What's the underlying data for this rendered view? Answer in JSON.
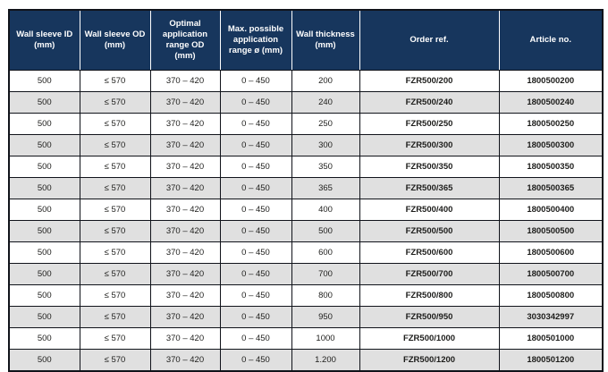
{
  "colors": {
    "header_bg": "#17365d",
    "header_text": "#ffffff",
    "row_alt_bg": "#e0e0e0",
    "row_bg": "#ffffff",
    "border": "#10131a",
    "body_text": "#1d1d1b"
  },
  "table": {
    "columns": [
      "Wall sleeve ID\n(mm)",
      "Wall sleeve OD\n(mm)",
      "Optimal\napplication\nrange OD\n(mm)",
      "Max. possible\napplication\nrange ø (mm)",
      "Wall thickness\n(mm)",
      "Order ref.",
      "Article no."
    ],
    "rows": [
      [
        "500",
        "≤ 570",
        "370 – 420",
        "0 – 450",
        "200",
        "FZR500/200",
        "1800500200"
      ],
      [
        "500",
        "≤ 570",
        "370 – 420",
        "0 – 450",
        "240",
        "FZR500/240",
        "1800500240"
      ],
      [
        "500",
        "≤ 570",
        "370 – 420",
        "0 – 450",
        "250",
        "FZR500/250",
        "1800500250"
      ],
      [
        "500",
        "≤ 570",
        "370 – 420",
        "0 – 450",
        "300",
        "FZR500/300",
        "1800500300"
      ],
      [
        "500",
        "≤ 570",
        "370 – 420",
        "0 – 450",
        "350",
        "FZR500/350",
        "1800500350"
      ],
      [
        "500",
        "≤ 570",
        "370 – 420",
        "0 – 450",
        "365",
        "FZR500/365",
        "1800500365"
      ],
      [
        "500",
        "≤ 570",
        "370 – 420",
        "0 – 450",
        "400",
        "FZR500/400",
        "1800500400"
      ],
      [
        "500",
        "≤ 570",
        "370 – 420",
        "0 – 450",
        "500",
        "FZR500/500",
        "1800500500"
      ],
      [
        "500",
        "≤ 570",
        "370 – 420",
        "0 – 450",
        "600",
        "FZR500/600",
        "1800500600"
      ],
      [
        "500",
        "≤ 570",
        "370 – 420",
        "0 – 450",
        "700",
        "FZR500/700",
        "1800500700"
      ],
      [
        "500",
        "≤ 570",
        "370 – 420",
        "0 – 450",
        "800",
        "FZR500/800",
        "1800500800"
      ],
      [
        "500",
        "≤ 570",
        "370 – 420",
        "0 – 450",
        "950",
        "FZR500/950",
        "3030342997"
      ],
      [
        "500",
        "≤ 570",
        "370 – 420",
        "0 – 450",
        "1000",
        "FZR500/1000",
        "1800501000"
      ],
      [
        "500",
        "≤ 570",
        "370 – 420",
        "0 – 450",
        "1.200",
        "FZR500/1200",
        "1800501200"
      ]
    ]
  }
}
